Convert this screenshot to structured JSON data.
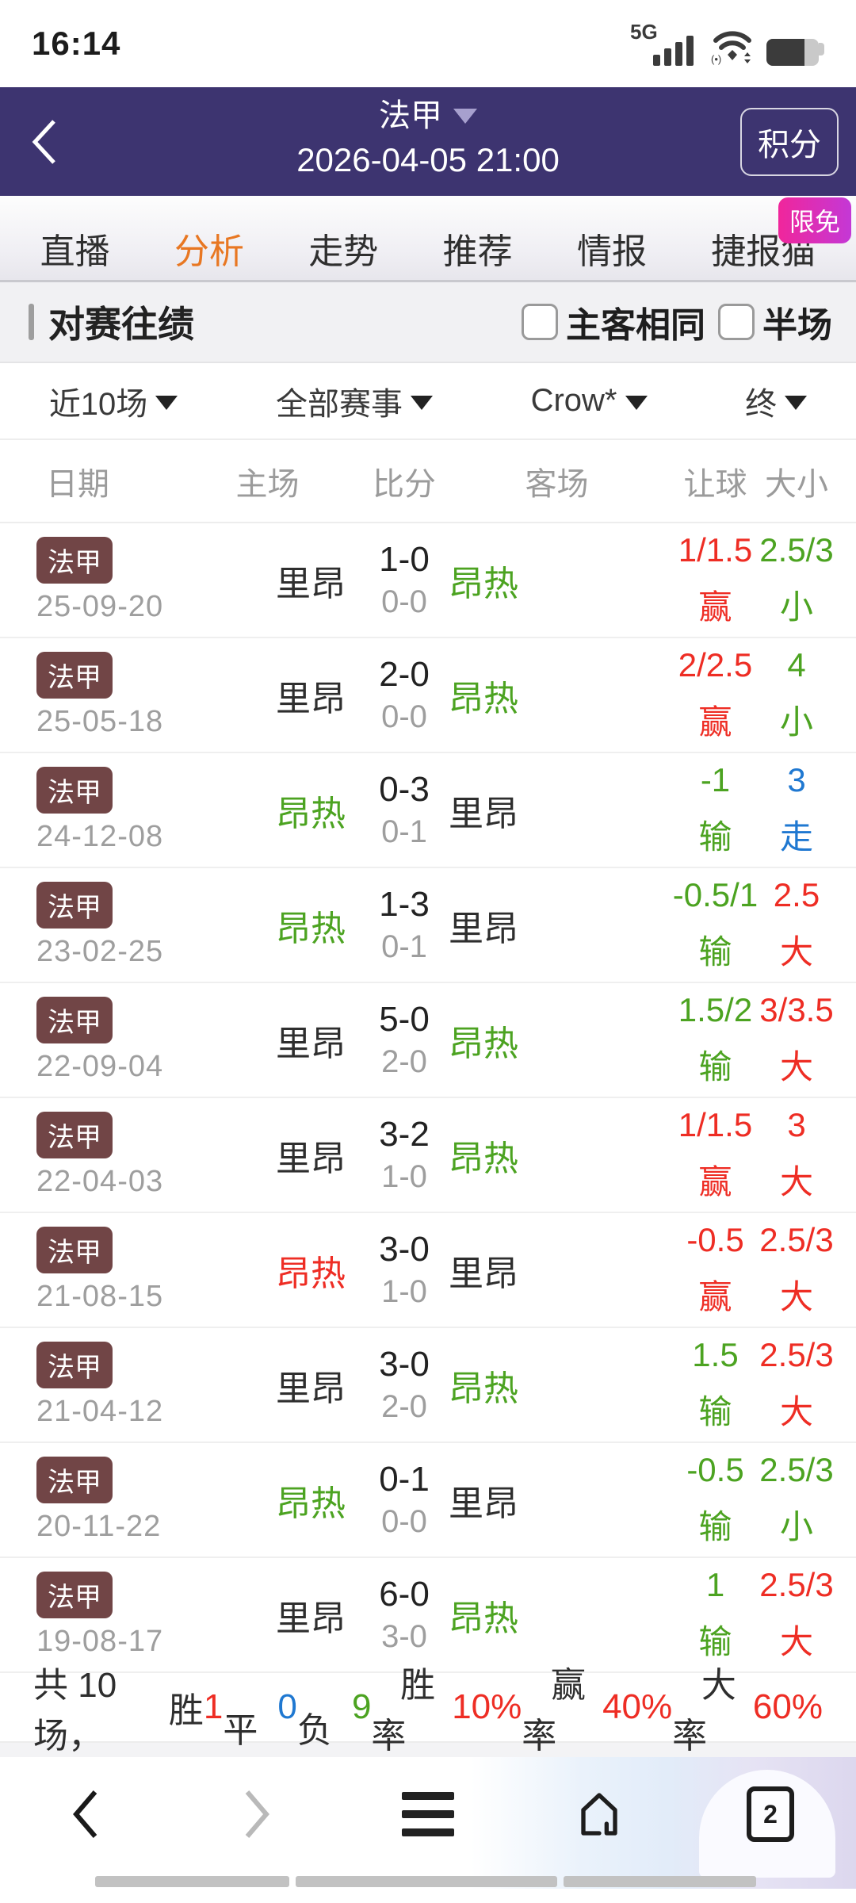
{
  "palette": {
    "purple": "#3d3470",
    "orange_active_tab": "#e87722",
    "badge_maroon": "#714546",
    "red": "#ee2d24",
    "green": "#4ca321",
    "blue": "#1f78d1",
    "dark": "#2e2e2e",
    "promo_pink": "#f0269b",
    "promo_purple": "#c438d6"
  },
  "status_bar": {
    "time": "16:14",
    "network_label": "5G"
  },
  "header": {
    "league": "法甲",
    "datetime": "2026-04-05 21:00",
    "standings_button": "积分"
  },
  "tabs": {
    "items": [
      "直播",
      "分析",
      "走势",
      "推荐",
      "情报",
      "捷报猫"
    ],
    "active_index": 1,
    "promo_badge": "限免"
  },
  "section": {
    "title": "对赛往绩",
    "checkboxes": [
      {
        "label": "主客相同",
        "checked": false
      },
      {
        "label": "半场",
        "checked": false
      }
    ]
  },
  "filters": [
    {
      "label": "近10场"
    },
    {
      "label": "全部赛事"
    },
    {
      "label": "Crow*"
    },
    {
      "label": "终"
    }
  ],
  "table": {
    "headers": [
      "日期",
      "主场",
      "比分",
      "客场",
      "让球",
      "大小"
    ],
    "rows": [
      {
        "league": "法甲",
        "date": "25-09-20",
        "home": "里昂",
        "home_color": "dark",
        "score": "1-0",
        "half": "0-0",
        "away": "昂热",
        "away_color": "green",
        "handicap": "1/1.5",
        "handicap_result": "赢",
        "handicap_color": "red",
        "ou": "2.5/3",
        "ou_result": "小",
        "ou_color": "green"
      },
      {
        "league": "法甲",
        "date": "25-05-18",
        "home": "里昂",
        "home_color": "dark",
        "score": "2-0",
        "half": "0-0",
        "away": "昂热",
        "away_color": "green",
        "handicap": "2/2.5",
        "handicap_result": "赢",
        "handicap_color": "red",
        "ou": "4",
        "ou_result": "小",
        "ou_color": "green"
      },
      {
        "league": "法甲",
        "date": "24-12-08",
        "home": "昂热",
        "home_color": "green",
        "score": "0-3",
        "half": "0-1",
        "away": "里昂",
        "away_color": "dark",
        "handicap": "-1",
        "handicap_result": "输",
        "handicap_color": "green",
        "ou": "3",
        "ou_result": "走",
        "ou_color": "blue"
      },
      {
        "league": "法甲",
        "date": "23-02-25",
        "home": "昂热",
        "home_color": "green",
        "score": "1-3",
        "half": "0-1",
        "away": "里昂",
        "away_color": "dark",
        "handicap": "-0.5/1",
        "handicap_result": "输",
        "handicap_color": "green",
        "ou": "2.5",
        "ou_result": "大",
        "ou_color": "red"
      },
      {
        "league": "法甲",
        "date": "22-09-04",
        "home": "里昂",
        "home_color": "dark",
        "score": "5-0",
        "half": "2-0",
        "away": "昂热",
        "away_color": "green",
        "handicap": "1.5/2",
        "handicap_result": "输",
        "handicap_color": "green",
        "ou": "3/3.5",
        "ou_result": "大",
        "ou_color": "red"
      },
      {
        "league": "法甲",
        "date": "22-04-03",
        "home": "里昂",
        "home_color": "dark",
        "score": "3-2",
        "half": "1-0",
        "away": "昂热",
        "away_color": "green",
        "handicap": "1/1.5",
        "handicap_result": "赢",
        "handicap_color": "red",
        "ou": "3",
        "ou_result": "大",
        "ou_color": "red"
      },
      {
        "league": "法甲",
        "date": "21-08-15",
        "home": "昂热",
        "home_color": "red",
        "score": "3-0",
        "half": "1-0",
        "away": "里昂",
        "away_color": "dark",
        "handicap": "-0.5",
        "handicap_result": "赢",
        "handicap_color": "red",
        "ou": "2.5/3",
        "ou_result": "大",
        "ou_color": "red"
      },
      {
        "league": "法甲",
        "date": "21-04-12",
        "home": "里昂",
        "home_color": "dark",
        "score": "3-0",
        "half": "2-0",
        "away": "昂热",
        "away_color": "green",
        "handicap": "1.5",
        "handicap_result": "输",
        "handicap_color": "green",
        "ou": "2.5/3",
        "ou_result": "大",
        "ou_color": "red"
      },
      {
        "league": "法甲",
        "date": "20-11-22",
        "home": "昂热",
        "home_color": "green",
        "score": "0-1",
        "half": "0-0",
        "away": "里昂",
        "away_color": "dark",
        "handicap": "-0.5",
        "handicap_result": "输",
        "handicap_color": "green",
        "ou": "2.5/3",
        "ou_result": "小",
        "ou_color": "green"
      },
      {
        "league": "法甲",
        "date": "19-08-17",
        "home": "里昂",
        "home_color": "dark",
        "score": "6-0",
        "half": "3-0",
        "away": "昂热",
        "away_color": "green",
        "handicap": "1",
        "handicap_result": "输",
        "handicap_color": "green",
        "ou": "2.5/3",
        "ou_result": "大",
        "ou_color": "red"
      }
    ]
  },
  "summary": {
    "parts": [
      {
        "t": "共 10 场，  ",
        "c": "dark"
      },
      {
        "t": "胜 ",
        "c": "dark"
      },
      {
        "t": "1",
        "c": "red"
      },
      {
        "t": "   平 ",
        "c": "dark"
      },
      {
        "t": "0",
        "c": "blue"
      },
      {
        "t": "   负 ",
        "c": "dark"
      },
      {
        "t": "9",
        "c": "green"
      },
      {
        "t": "   胜率 ",
        "c": "dark"
      },
      {
        "t": "10%",
        "c": "red"
      },
      {
        "t": "   赢率 ",
        "c": "dark"
      },
      {
        "t": "40%",
        "c": "red"
      },
      {
        "t": "   大率 ",
        "c": "dark"
      },
      {
        "t": "60%",
        "c": "red"
      }
    ]
  },
  "bottom_nav": {
    "tab_count": "2"
  }
}
